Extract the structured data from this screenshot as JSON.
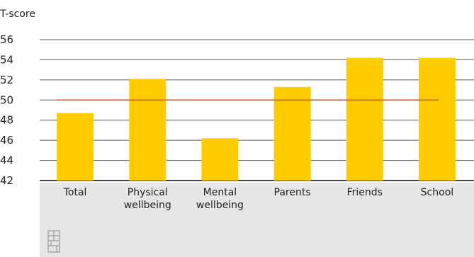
{
  "chart_data": {
    "type": "bar",
    "title": "",
    "xlabel": "",
    "ylabel": "T-score",
    "categories": [
      [
        "Total"
      ],
      [
        "Physical",
        "wellbeing"
      ],
      [
        "Mental",
        "wellbeing"
      ],
      [
        "Parents"
      ],
      [
        "Friends"
      ],
      [
        "School"
      ]
    ],
    "values": [
      48.7,
      52.1,
      46.2,
      51.3,
      54.2,
      54.2
    ],
    "reference_line": 50,
    "ylim": [
      42,
      56
    ],
    "yticks": [
      42,
      44,
      46,
      48,
      50,
      52,
      54,
      56
    ],
    "grid": true,
    "legend": "none",
    "colors": {
      "bar": "#FFCC00",
      "reference_line": "#E94C0A",
      "grid": "#5a5a5a",
      "axis_band": "#E6E6E6",
      "logo": "#9A9A9A"
    }
  },
  "logo": {
    "icon": "cbs-logo-icon"
  }
}
